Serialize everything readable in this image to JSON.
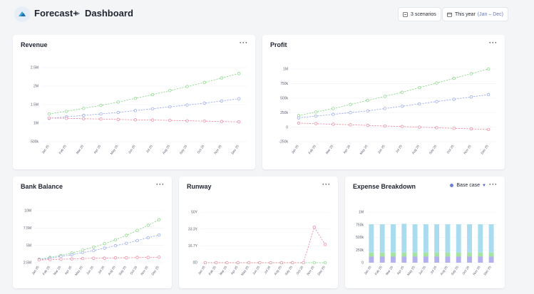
{
  "header": {
    "app_name": "Forecast+",
    "separator": ">",
    "page_title": "Dashboard",
    "scenarios_label": "3 scenarios",
    "period_label": "This year",
    "period_range": "(Jan – Dec)"
  },
  "colors": {
    "green": "#7fd67f",
    "blue": "#8fa3ef",
    "pink": "#ef7f98",
    "bar_blue": "#a9dcee",
    "bar_green": "#a6e3a1",
    "bar_purple": "#b2b0ee"
  },
  "cards": {
    "revenue": {
      "title": "Revenue",
      "more": "···"
    },
    "profit": {
      "title": "Profit",
      "more": "···"
    },
    "bank": {
      "title": "Bank Balance",
      "more": "···"
    },
    "runway": {
      "title": "Runway",
      "more": "···"
    },
    "expense": {
      "title": "Expense Breakdown",
      "more": "···",
      "scenario": "Base case"
    }
  },
  "chart_data": [
    {
      "id": "revenue",
      "type": "line",
      "x": [
        "Jan 25",
        "Feb 25",
        "Mar 25",
        "Apr 25",
        "May 25",
        "Jun 25",
        "Jul 25",
        "Aug 25",
        "Sep 25",
        "Oct 25",
        "Nov 25",
        "Dec 25"
      ],
      "ytick_labels": [
        "2.5M",
        "2M",
        "1.5M",
        "1M",
        "500k"
      ],
      "ytick_values": [
        2500000,
        2000000,
        1500000,
        1000000,
        500000
      ],
      "ylim": [
        500000,
        2500000
      ],
      "series": [
        {
          "color": "green",
          "values": [
            1250000,
            1320000,
            1400000,
            1480000,
            1570000,
            1670000,
            1770000,
            1880000,
            1990000,
            2100000,
            2220000,
            2340000
          ]
        },
        {
          "color": "blue",
          "values": [
            1130000,
            1170000,
            1210000,
            1250000,
            1290000,
            1340000,
            1390000,
            1440000,
            1490000,
            1540000,
            1600000,
            1660000
          ]
        },
        {
          "color": "pink",
          "values": [
            1140000,
            1130000,
            1120000,
            1110000,
            1100000,
            1090000,
            1085000,
            1075000,
            1065000,
            1055000,
            1045000,
            1035000
          ]
        }
      ]
    },
    {
      "id": "profit",
      "type": "line",
      "x": [
        "Jan 25",
        "Feb 25",
        "Mar 25",
        "Apr 25",
        "May 25",
        "Jun 25",
        "Jul 25",
        "Aug 25",
        "Sep 25",
        "Oct 25",
        "Nov 25",
        "Dec 25"
      ],
      "ytick_labels": [
        "1M",
        "750k",
        "500k",
        "250k",
        "0",
        "-250k"
      ],
      "ytick_values": [
        1000000,
        750000,
        500000,
        250000,
        0,
        -250000
      ],
      "ylim": [
        -250000,
        1000000
      ],
      "series": [
        {
          "color": "green",
          "values": [
            200000,
            260000,
            320000,
            390000,
            460000,
            530000,
            600000,
            680000,
            760000,
            840000,
            920000,
            1000000
          ]
        },
        {
          "color": "blue",
          "values": [
            160000,
            190000,
            220000,
            250000,
            280000,
            320000,
            360000,
            400000,
            440000,
            480000,
            520000,
            560000
          ]
        },
        {
          "color": "pink",
          "values": [
            70000,
            60000,
            50000,
            40000,
            30000,
            20000,
            10000,
            0,
            -10000,
            -20000,
            -30000,
            -40000
          ]
        }
      ]
    },
    {
      "id": "bank",
      "type": "line",
      "x": [
        "Jan 25",
        "Feb 25",
        "Mar 25",
        "Apr 25",
        "May 25",
        "Jun 25",
        "Jul 25",
        "Aug 25",
        "Sep 25",
        "Oct 25",
        "Nov 25",
        "Dec 25"
      ],
      "ytick_labels": [
        "10M",
        "7.5M",
        "5M",
        "2.5M"
      ],
      "ytick_values": [
        10000000,
        7500000,
        5000000,
        2500000
      ],
      "ylim": [
        2500000,
        10000000
      ],
      "series": [
        {
          "color": "green",
          "values": [
            3000000,
            3250000,
            3550000,
            3900000,
            4300000,
            4750000,
            5250000,
            5800000,
            6450000,
            7150000,
            7900000,
            8700000
          ]
        },
        {
          "color": "blue",
          "values": [
            2950000,
            3150000,
            3400000,
            3650000,
            3950000,
            4250000,
            4600000,
            4950000,
            5300000,
            5700000,
            6100000,
            6500000
          ]
        },
        {
          "color": "pink",
          "values": [
            2900000,
            2950000,
            3000000,
            3050000,
            3100000,
            3150000,
            3150000,
            3200000,
            3200000,
            3250000,
            3250000,
            3300000
          ]
        }
      ]
    },
    {
      "id": "runway",
      "type": "line",
      "x": [
        "Jan 25",
        "Feb 25",
        "Mar 25",
        "Apr 25",
        "May 25",
        "Jun 25",
        "Jul 25",
        "Aug 25",
        "Sep 25",
        "Oct 25",
        "Nov 25",
        "Dec 25"
      ],
      "ytick_labels": [
        "50Y",
        "33.3Y",
        "16.7Y",
        "0D"
      ],
      "ytick_values": [
        50,
        33.3,
        16.7,
        0
      ],
      "ylim": [
        0,
        50
      ],
      "series": [
        {
          "color": "green",
          "values": [
            0,
            0,
            0,
            0,
            0,
            0,
            0,
            0,
            0,
            0,
            0,
            0
          ]
        },
        {
          "color": "pink",
          "values": [
            0,
            0,
            0,
            0,
            0,
            0,
            0,
            0,
            0,
            0,
            35,
            18
          ]
        }
      ]
    },
    {
      "id": "expense",
      "type": "bar",
      "x": [
        "Jan 25",
        "Feb 25",
        "Mar 25",
        "Apr 25",
        "May 25",
        "Jun 25",
        "Jul 25",
        "Aug 25",
        "Sep 25",
        "Oct 25",
        "Nov 25",
        "Dec 25"
      ],
      "ytick_labels": [
        "1M",
        "750k",
        "500k",
        "250k",
        "0"
      ],
      "ytick_values": [
        1000000,
        750000,
        500000,
        250000,
        0
      ],
      "ylim": [
        0,
        1000000
      ],
      "series": [
        {
          "color": "bar_purple",
          "values": [
            120000,
            120000,
            120000,
            120000,
            120000,
            120000,
            120000,
            120000,
            120000,
            120000,
            120000,
            120000
          ]
        },
        {
          "color": "bar_green",
          "values": [
            80000,
            80000,
            80000,
            80000,
            80000,
            80000,
            80000,
            80000,
            80000,
            80000,
            80000,
            80000
          ]
        },
        {
          "color": "bar_blue",
          "values": [
            560000,
            560000,
            560000,
            570000,
            560000,
            560000,
            560000,
            560000,
            560000,
            560000,
            560000,
            560000
          ]
        }
      ]
    }
  ]
}
